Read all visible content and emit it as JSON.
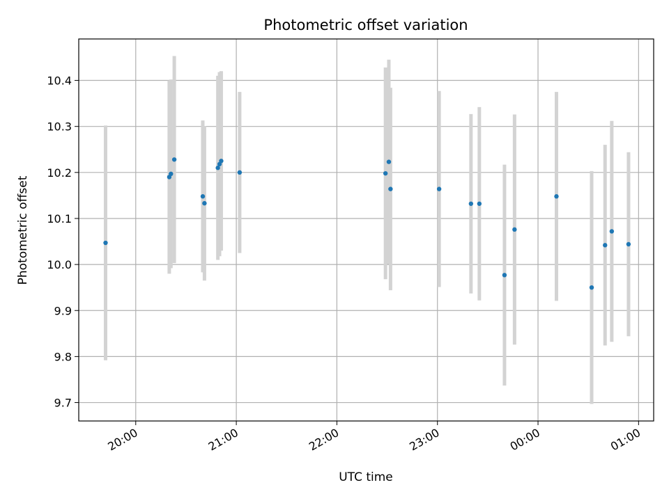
{
  "chart_data": {
    "type": "scatter",
    "title": "Photometric offset variation",
    "xlabel": "UTC time",
    "ylabel": "Photometric offset",
    "x_axis": {
      "kind": "time",
      "min": "19:26",
      "max": "01:09",
      "ticks": [
        "20:00",
        "21:00",
        "22:00",
        "23:00",
        "00:00",
        "01:00"
      ],
      "tick_values": [
        "20:00",
        "21:00",
        "22:00",
        "23:00",
        "00:00",
        "01:00"
      ]
    },
    "y_axis": {
      "min": 9.66,
      "max": 10.49,
      "ticks": [
        "9.7",
        "9.8",
        "9.9",
        "10.0",
        "10.1",
        "10.2",
        "10.3",
        "10.4"
      ],
      "tick_values": [
        9.7,
        9.8,
        9.9,
        10.0,
        10.1,
        10.2,
        10.3,
        10.4
      ]
    },
    "grid": true,
    "point_color": "#1f77b4",
    "errorbar_color": "#d3d3d3",
    "points": [
      {
        "x": "19:42",
        "y": 10.047,
        "err": 0.255
      },
      {
        "x": "20:20",
        "y": 10.19,
        "err": 0.21
      },
      {
        "x": "20:21",
        "y": 10.197,
        "err": 0.205
      },
      {
        "x": "20:23",
        "y": 10.228,
        "err": 0.225
      },
      {
        "x": "20:40",
        "y": 10.148,
        "err": 0.165
      },
      {
        "x": "20:41",
        "y": 10.133,
        "err": 0.168
      },
      {
        "x": "20:49",
        "y": 10.21,
        "err": 0.2
      },
      {
        "x": "20:50",
        "y": 10.218,
        "err": 0.2
      },
      {
        "x": "20:51",
        "y": 10.225,
        "err": 0.195
      },
      {
        "x": "21:02",
        "y": 10.2,
        "err": 0.175
      },
      {
        "x": "22:29",
        "y": 10.198,
        "err": 0.23
      },
      {
        "x": "22:31",
        "y": 10.223,
        "err": 0.222
      },
      {
        "x": "22:32",
        "y": 10.164,
        "err": 0.22
      },
      {
        "x": "23:01",
        "y": 10.164,
        "err": 0.213
      },
      {
        "x": "23:20",
        "y": 10.132,
        "err": 0.195
      },
      {
        "x": "23:25",
        "y": 10.132,
        "err": 0.21
      },
      {
        "x": "23:40",
        "y": 9.977,
        "err": 0.24
      },
      {
        "x": "23:46",
        "y": 10.076,
        "err": 0.25
      },
      {
        "x": "00:11",
        "y": 10.148,
        "err": 0.227
      },
      {
        "x": "00:32",
        "y": 9.95,
        "err": 0.253
      },
      {
        "x": "00:40",
        "y": 10.042,
        "err": 0.218
      },
      {
        "x": "00:44",
        "y": 10.072,
        "err": 0.24
      },
      {
        "x": "00:54",
        "y": 10.044,
        "err": 0.2
      }
    ]
  }
}
